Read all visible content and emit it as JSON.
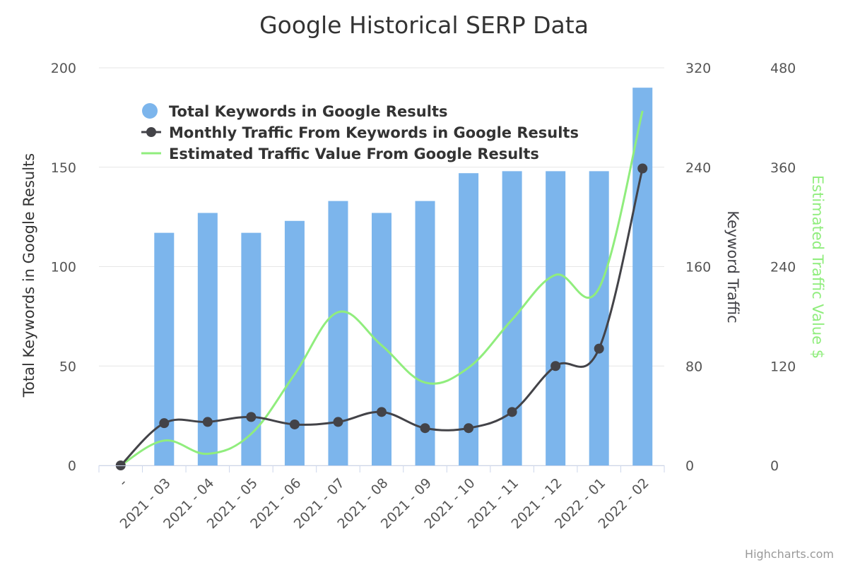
{
  "chart_data": {
    "type": "bar",
    "title": "Google Historical SERP Data",
    "categories": [
      "-",
      "2021 - 03",
      "2021 - 04",
      "2021 - 05",
      "2021 - 06",
      "2021 - 07",
      "2021 - 08",
      "2021 - 09",
      "2021 - 10",
      "2021 - 11",
      "2021 - 12",
      "2022 - 01",
      "2022 - 02"
    ],
    "series": [
      {
        "name": "Total Keywords in Google Results",
        "type": "bar",
        "axis": "left",
        "color": "#7cb5ec",
        "values": [
          0,
          117,
          127,
          117,
          123,
          133,
          127,
          133,
          147,
          148,
          148,
          148,
          190
        ]
      },
      {
        "name": "Monthly Traffic From Keywords in Google Results",
        "type": "line",
        "axis": "right1",
        "color": "#434348",
        "markers": true,
        "values": [
          0,
          34,
          35,
          39,
          33,
          35,
          43,
          30,
          30,
          43,
          80,
          94,
          239
        ]
      },
      {
        "name": "Estimated Traffic Value From Google Results",
        "type": "line",
        "axis": "right2",
        "color": "#90ed7d",
        "markers": false,
        "values": [
          0,
          30,
          14,
          38,
          110,
          185,
          145,
          100,
          118,
          176,
          230,
          214,
          428
        ]
      }
    ],
    "axes": {
      "left": {
        "title": "Total Keywords in Google Results",
        "ticks": [
          "0",
          "50",
          "100",
          "150",
          "200"
        ],
        "range": [
          0,
          200
        ],
        "title_color": "#333333"
      },
      "right1": {
        "title": "Keyword Traffic",
        "ticks": [
          "0",
          "80",
          "160",
          "240",
          "320"
        ],
        "range": [
          0,
          320
        ],
        "title_color": "#434348"
      },
      "right2": {
        "title": "Estimated Traffic Value $",
        "ticks": [
          "0",
          "120",
          "240",
          "360",
          "480"
        ],
        "range": [
          0,
          480
        ],
        "title_color": "#90ed7d"
      }
    },
    "legend_position": "top-left",
    "grid": true
  },
  "credits": "Highcharts.com"
}
